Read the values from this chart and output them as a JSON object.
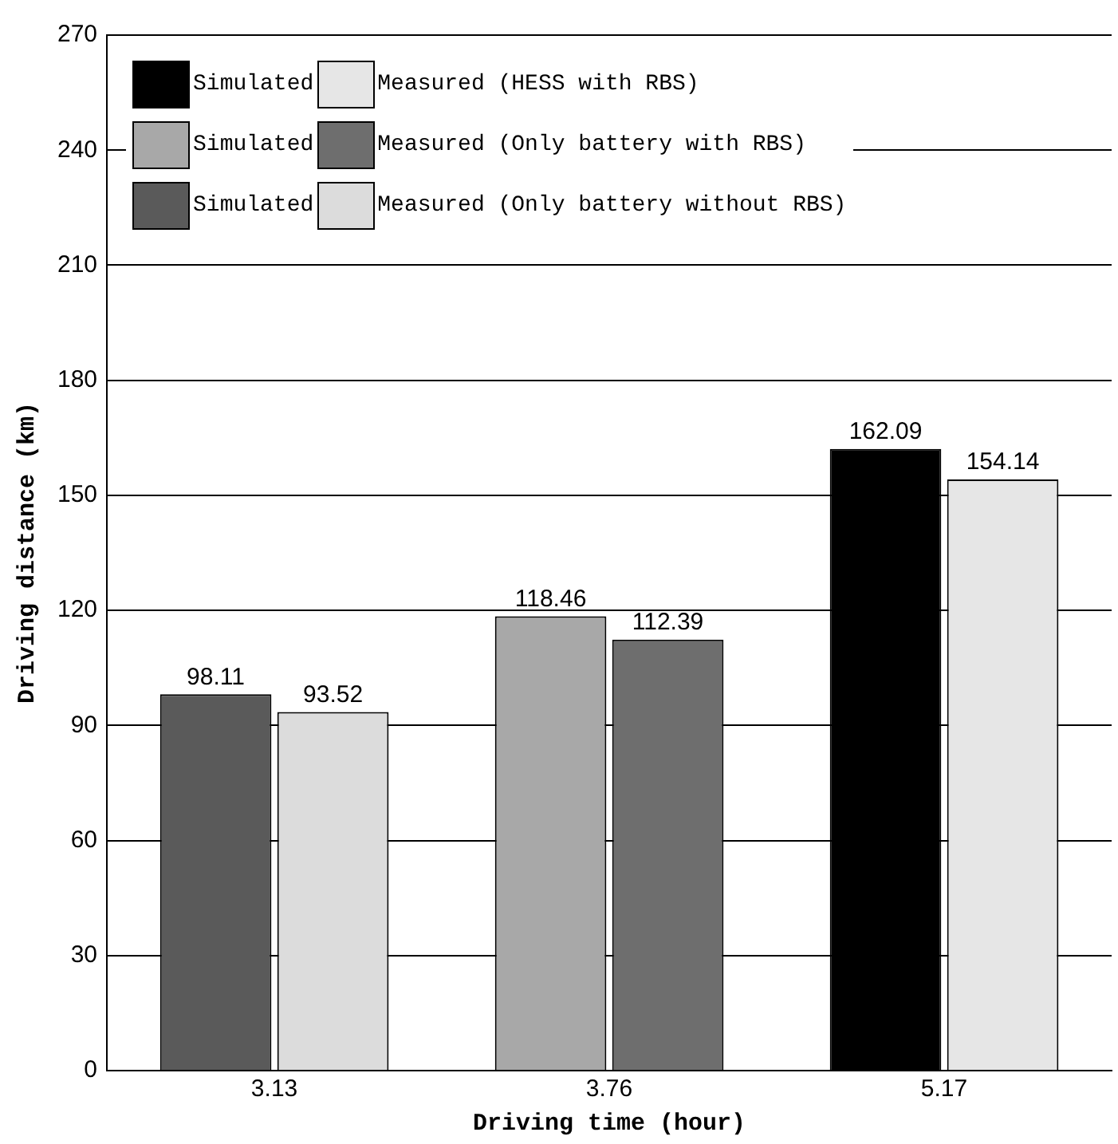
{
  "chart_data": {
    "type": "bar",
    "xlabel": "Driving time (hour)",
    "ylabel": "Driving distance (km)",
    "categories": [
      "3.13",
      "3.76",
      "5.17"
    ],
    "series": [
      {
        "name": "Simulated",
        "color": "#000000",
        "values": [
          null,
          null,
          162.09
        ]
      },
      {
        "name": "Measured (HESS with RBS)",
        "color": "#e6e6e6",
        "values": [
          null,
          null,
          154.14
        ]
      },
      {
        "name": "Simulated",
        "color": "#a8a8a8",
        "values": [
          null,
          118.46,
          null
        ]
      },
      {
        "name": "Measured (Only battery with RBS)",
        "color": "#6e6e6e",
        "values": [
          null,
          112.39,
          null
        ]
      },
      {
        "name": "Simulated",
        "color": "#5a5a5a",
        "values": [
          98.11,
          null,
          null
        ]
      },
      {
        "name": "Measured (Only battery without RBS)",
        "color": "#dcdcdc",
        "values": [
          93.52,
          null,
          null
        ]
      }
    ],
    "ylim": [
      0,
      270
    ],
    "yticks": [
      {
        "value": 0,
        "label": "0"
      },
      30,
      60,
      90,
      120,
      150,
      180,
      210,
      240,
      270
    ],
    "grid": "y",
    "legend": "top left",
    "data_labels": true
  }
}
